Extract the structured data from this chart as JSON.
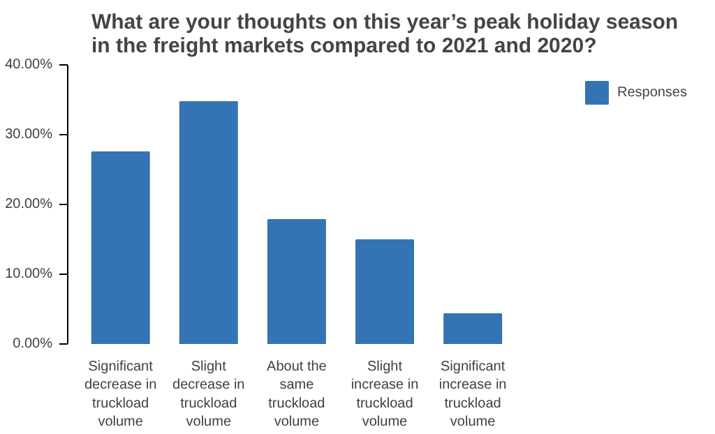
{
  "chart_data": {
    "type": "bar",
    "title": "What are your thoughts on this year’s peak holiday season in the freight markets compared to 2021 and 2020?",
    "categories": [
      "Significant decrease in truckload volume",
      "Slight decrease in truckload volume",
      "About the same truckload volume",
      "Slight increase in truckload volume",
      "Significant increase in truckload volume"
    ],
    "series": [
      {
        "name": "Responses",
        "color": "#3474b4",
        "values": [
          27.5,
          34.7,
          17.8,
          14.9,
          4.3
        ]
      }
    ],
    "ylim": [
      0,
      40
    ],
    "yticks": [
      {
        "value": 0,
        "label": "0.00%"
      },
      {
        "value": 10,
        "label": "10.00%"
      },
      {
        "value": 20,
        "label": "20.00%"
      },
      {
        "value": 30,
        "label": "30.00%"
      },
      {
        "value": 40,
        "label": "40.00%"
      }
    ],
    "grid": false,
    "legend": "top right"
  }
}
